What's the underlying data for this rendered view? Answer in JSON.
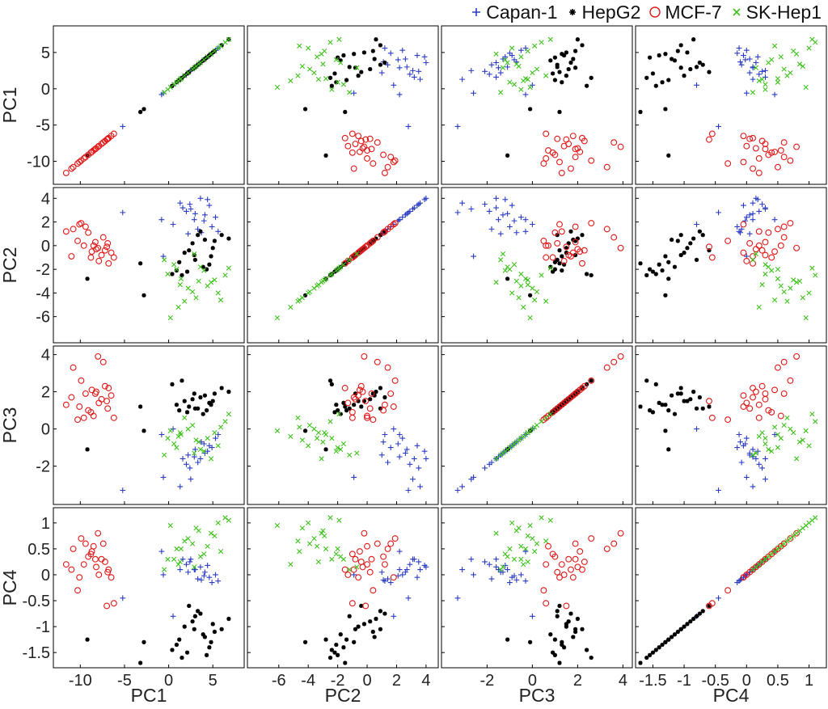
{
  "legend": [
    {
      "label": "Capan-1",
      "marker": "plus",
      "color": "#2b3cc2"
    },
    {
      "label": "HepG2",
      "marker": "star",
      "color": "#000000"
    },
    {
      "label": "MCF-7",
      "marker": "circle",
      "color": "#e01818"
    },
    {
      "label": "SK-Hep1",
      "marker": "x",
      "color": "#3ec21b"
    }
  ],
  "chart_data": {
    "type": "scatter",
    "variables": [
      "PC1",
      "PC2",
      "PC3",
      "PC4"
    ],
    "axes": {
      "PC1": {
        "label": "PC1",
        "lim": [
          -12.5,
          8
        ],
        "ticks": [
          -10,
          -5,
          0,
          5
        ]
      },
      "PC2": {
        "label": "PC2",
        "lim": [
          -7.8,
          4.5
        ],
        "ticks": [
          -6,
          -4,
          -2,
          0,
          2,
          4
        ]
      },
      "PC3": {
        "label": "PC3",
        "lim": [
          -3.8,
          4.2
        ],
        "ticks": [
          -2,
          0,
          2,
          4
        ]
      },
      "PC4": {
        "label": "PC4",
        "lim": [
          -1.7,
          1.2
        ],
        "ticks": [
          -1.5,
          -1,
          -0.5,
          0,
          0.5,
          1
        ]
      }
    },
    "tick_labels": {
      "PC1_x": [
        "-10",
        "-5",
        "0",
        "5"
      ],
      "PC1_y": [
        "-10",
        "-5",
        "0",
        "5"
      ],
      "PC2": [
        "-6",
        "-4",
        "-2",
        "0",
        "2",
        "4"
      ],
      "PC3": [
        "-2",
        "0",
        "2",
        "4"
      ],
      "PC4": [
        "-1.5",
        "-1",
        "-0.5",
        "0",
        "0.5",
        "1"
      ]
    },
    "grid": false,
    "legend_position": "top-right",
    "series": [
      {
        "name": "Capan-1",
        "marker": "plus",
        "color": "#2b3cc2",
        "points": [
          [
            -5.2,
            2.8,
            -3.3,
            -0.45
          ],
          [
            1.3,
            3.6,
            -3.1,
            0.1
          ],
          [
            2.5,
            3.1,
            -2.7,
            0.3
          ],
          [
            3.6,
            4.0,
            -1.6,
            0.15
          ],
          [
            4.1,
            2.6,
            -1.3,
            0.05
          ],
          [
            4.6,
            3.4,
            -0.9,
            -0.05
          ],
          [
            2.9,
            2.2,
            -1.5,
            0.1
          ],
          [
            3.3,
            1.4,
            -1.8,
            -0.08
          ],
          [
            4.9,
            1.6,
            -1.0,
            -0.15
          ],
          [
            5.3,
            2.4,
            -0.5,
            0.0
          ],
          [
            3.7,
            1.1,
            -0.7,
            -0.1
          ],
          [
            2.4,
            3.5,
            -2.1,
            0.25
          ],
          [
            4.4,
            3.9,
            -1.2,
            0.18
          ],
          [
            5.6,
            1.2,
            -0.3,
            -0.12
          ],
          [
            2.0,
            2.9,
            -1.9,
            0.2
          ],
          [
            3.0,
            2.7,
            -1.1,
            0.1
          ],
          [
            4.0,
            2.1,
            -0.8,
            -0.02
          ],
          [
            1.6,
            3.2,
            -1.6,
            0.3
          ],
          [
            -0.8,
            2.2,
            -0.3,
            0.45
          ],
          [
            0.5,
            1.8,
            0.0,
            -0.8
          ],
          [
            -0.6,
            -0.9,
            -2.6,
            0.0
          ],
          [
            2.2,
            1.0,
            -1.4,
            0.05
          ]
        ]
      },
      {
        "name": "HepG2",
        "marker": "star",
        "color": "#000000",
        "points": [
          [
            1.8,
            -0.6,
            1.5,
            -1.0
          ],
          [
            3.0,
            -1.2,
            1.1,
            -0.8
          ],
          [
            4.1,
            0.5,
            1.8,
            -1.2
          ],
          [
            0.9,
            -2.1,
            1.3,
            -1.35
          ],
          [
            2.7,
            0.2,
            1.6,
            -0.9
          ],
          [
            5.2,
            0.4,
            1.9,
            -1.1
          ],
          [
            2.3,
            -0.4,
            1.2,
            -0.6
          ],
          [
            4.6,
            -1.6,
            1.4,
            -1.4
          ],
          [
            6.0,
            0.9,
            2.2,
            -1.05
          ],
          [
            1.2,
            -1.4,
            1.0,
            -1.25
          ],
          [
            3.6,
            1.2,
            1.7,
            -0.75
          ],
          [
            2.1,
            -2.2,
            0.9,
            -1.5
          ],
          [
            4.8,
            -0.9,
            1.3,
            -1.3
          ],
          [
            0.4,
            -2.4,
            2.4,
            -1.45
          ],
          [
            3.3,
            0.9,
            1.1,
            -0.7
          ],
          [
            5.0,
            -0.2,
            1.5,
            -0.95
          ],
          [
            1.5,
            -2.5,
            2.6,
            -1.6
          ],
          [
            3.9,
            -1.8,
            0.8,
            -1.15
          ],
          [
            6.8,
            0.6,
            2.0,
            -0.85
          ],
          [
            2.9,
            -0.8,
            1.9,
            -1.05
          ],
          [
            -2.8,
            -4.2,
            -0.1,
            -1.3
          ],
          [
            -9.2,
            -2.8,
            -1.1,
            -1.25
          ],
          [
            -3.2,
            -1.5,
            1.2,
            -1.7
          ],
          [
            4.3,
            -2.0,
            1.0,
            -1.55
          ]
        ]
      },
      {
        "name": "MCF-7",
        "marker": "circle",
        "color": "#e01818",
        "points": [
          [
            -10.8,
            1.4,
            3.3,
            0.5
          ],
          [
            -11.6,
            1.2,
            1.3,
            0.2
          ],
          [
            -9.4,
            1.6,
            1.9,
            0.6
          ],
          [
            -8.2,
            -0.3,
            2.0,
            0.15
          ],
          [
            -7.6,
            -0.8,
            1.6,
            0.3
          ],
          [
            -6.9,
            0.2,
            1.1,
            0.05
          ],
          [
            -8.8,
            -1.0,
            0.9,
            0.4
          ],
          [
            -7.2,
            -0.4,
            2.3,
            0.25
          ],
          [
            -9.9,
            1.9,
            2.6,
            0.7
          ],
          [
            -6.5,
            -0.6,
            1.8,
            -0.05
          ],
          [
            -8.5,
            0.0,
            0.7,
            0.55
          ],
          [
            -7.9,
            -1.3,
            1.4,
            0.0
          ],
          [
            -10.3,
            0.4,
            0.5,
            -0.3
          ],
          [
            -6.8,
            -1.5,
            2.2,
            0.1
          ],
          [
            -9.1,
            1.1,
            1.0,
            0.35
          ],
          [
            -8.0,
            -0.2,
            3.9,
            0.8
          ],
          [
            -7.4,
            0.7,
            3.6,
            0.6
          ],
          [
            -11.0,
            -0.9,
            1.7,
            0.1
          ],
          [
            -9.6,
            0.0,
            0.6,
            0.2
          ],
          [
            -8.7,
            -0.5,
            2.1,
            0.45
          ],
          [
            -10.1,
            1.8,
            1.2,
            -0.05
          ],
          [
            -7.0,
            -0.1,
            1.5,
            -0.6
          ],
          [
            -6.2,
            -1.0,
            0.6,
            -0.55
          ],
          [
            -8.3,
            0.3,
            1.9,
            0.3
          ]
        ]
      },
      {
        "name": "SK-Hep1",
        "marker": "x",
        "color": "#3ec21b",
        "points": [
          [
            0.6,
            -1.6,
            -0.8,
            0.3
          ],
          [
            1.4,
            -2.8,
            -0.3,
            0.5
          ],
          [
            2.2,
            -3.6,
            0.0,
            0.7
          ],
          [
            3.1,
            -4.4,
            -0.6,
            0.9
          ],
          [
            4.0,
            -2.1,
            -1.2,
            0.4
          ],
          [
            4.8,
            -3.1,
            -1.6,
            0.8
          ],
          [
            5.6,
            -4.0,
            -0.9,
            1.0
          ],
          [
            6.4,
            -2.5,
            0.4,
            1.1
          ],
          [
            1.1,
            -5.2,
            -0.4,
            0.2
          ],
          [
            2.7,
            -3.9,
            0.2,
            0.6
          ],
          [
            3.6,
            -1.8,
            -1.1,
            0.35
          ],
          [
            5.2,
            -2.9,
            -0.2,
            0.75
          ],
          [
            -0.5,
            -1.2,
            -1.4,
            0.1
          ],
          [
            0.2,
            -6.1,
            -0.1,
            0.95
          ],
          [
            1.8,
            -4.7,
            0.6,
            0.65
          ],
          [
            4.4,
            -3.4,
            -0.5,
            0.55
          ],
          [
            6.8,
            -1.9,
            0.8,
            1.05
          ],
          [
            2.9,
            -0.7,
            -1.3,
            0.15
          ],
          [
            -0.1,
            -2.4,
            -0.5,
            0.3
          ],
          [
            3.4,
            -3.0,
            -0.7,
            0.85
          ],
          [
            5.9,
            -4.6,
            0.1,
            0.45
          ],
          [
            1.3,
            -3.3,
            -0.2,
            0.25
          ],
          [
            0.9,
            -2.0,
            -1.0,
            0.5
          ]
        ]
      }
    ]
  }
}
